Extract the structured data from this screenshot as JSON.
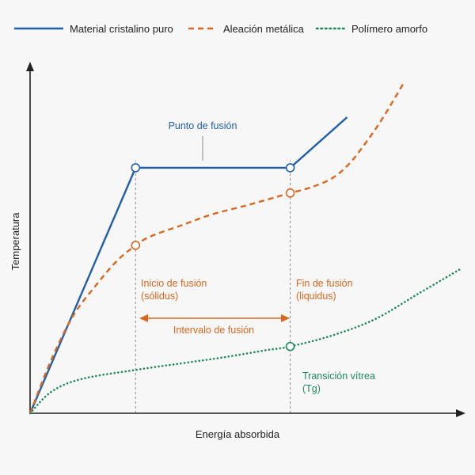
{
  "colors": {
    "crystal": "#1f5fa8",
    "alloy": "#d9671e",
    "polymer": "#1e8a5c",
    "axis": "#222222",
    "guide": "#8a8a8a",
    "text": "#222222"
  },
  "chart_data": {
    "type": "line",
    "title": "",
    "xlabel": "Energía absorbida",
    "ylabel": "Temperatura",
    "xlim": [
      0,
      100
    ],
    "ylim": [
      0,
      100
    ],
    "grid": false,
    "legend_position": "top",
    "series": [
      {
        "name": "Material cristalino puro",
        "key": "crystal",
        "style": "solid",
        "points": [
          [
            0,
            0
          ],
          [
            24.5,
            68
          ],
          [
            60.4,
            68
          ],
          [
            73.6,
            82
          ]
        ],
        "markers": [
          [
            24.5,
            68
          ],
          [
            60.4,
            68
          ]
        ]
      },
      {
        "name": "Aleación metálica",
        "key": "alloy",
        "style": "dashed",
        "points": [
          [
            0,
            0
          ],
          [
            5,
            15
          ],
          [
            10,
            27
          ],
          [
            15,
            35
          ],
          [
            20,
            42
          ],
          [
            24.5,
            46.5
          ],
          [
            28,
            49
          ],
          [
            35,
            52
          ],
          [
            42,
            55
          ],
          [
            50,
            57.5
          ],
          [
            56,
            59.5
          ],
          [
            60.4,
            61
          ],
          [
            65,
            62.5
          ],
          [
            70,
            65
          ],
          [
            74,
            69
          ],
          [
            78,
            75
          ],
          [
            82,
            82
          ],
          [
            87,
            92
          ]
        ],
        "markers": [
          [
            24.5,
            46.5
          ],
          [
            60.4,
            61
          ]
        ]
      },
      {
        "name": "Polímero amorfo",
        "key": "polymer",
        "style": "dotted",
        "points": [
          [
            0,
            0
          ],
          [
            5,
            6
          ],
          [
            12,
            9.5
          ],
          [
            24.5,
            12
          ],
          [
            35,
            13.8
          ],
          [
            45,
            15.5
          ],
          [
            55,
            17.5
          ],
          [
            60.4,
            18.5
          ],
          [
            70,
            21.5
          ],
          [
            80,
            26
          ],
          [
            90,
            33
          ],
          [
            100,
            40
          ]
        ],
        "markers": [
          [
            60.4,
            18.5
          ]
        ]
      }
    ],
    "vertical_guides": [
      24.5,
      60.4
    ],
    "annotations": {
      "melting_point": "Punto de fusión",
      "onset_line1": "Inicio de fusión",
      "onset_line2": "(sólidus)",
      "end_line1": "Fin de fusión",
      "end_line2": "(liquidus)",
      "interval": "Intervalo de fusión",
      "glass_line1": "Transición vítrea",
      "glass_line2": "(Tg)"
    }
  }
}
